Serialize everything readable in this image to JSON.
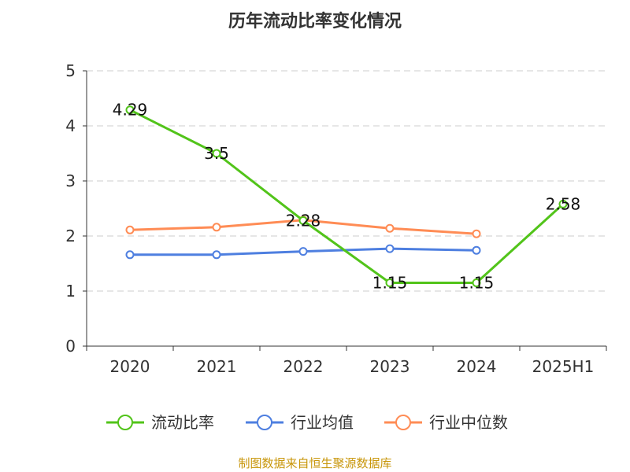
{
  "chart_data": {
    "type": "line",
    "title": "历年流动比率变化情况",
    "categories": [
      "2020",
      "2021",
      "2022",
      "2023",
      "2024",
      "2025H1"
    ],
    "ylim": [
      0,
      5
    ],
    "yticks": [
      0,
      1,
      2,
      3,
      4,
      5
    ],
    "grid": true,
    "legend_placement": "bottom",
    "series": [
      {
        "name": "流动比率",
        "color": "#52c41a",
        "values": [
          4.29,
          3.5,
          2.28,
          1.15,
          1.15,
          2.58
        ],
        "labels": [
          "4.29",
          "3.5",
          "2.28",
          "1.15",
          "1.15",
          "2.58"
        ]
      },
      {
        "name": "行业均值",
        "color": "#4e7fe0",
        "values": [
          1.66,
          1.66,
          1.72,
          1.77,
          1.74,
          null
        ]
      },
      {
        "name": "行业中位数",
        "color": "#ff8c55",
        "values": [
          2.11,
          2.16,
          2.29,
          2.14,
          2.04,
          null
        ]
      }
    ]
  },
  "source": "制图数据来自恒生聚源数据库",
  "source_color": "#c8960a"
}
